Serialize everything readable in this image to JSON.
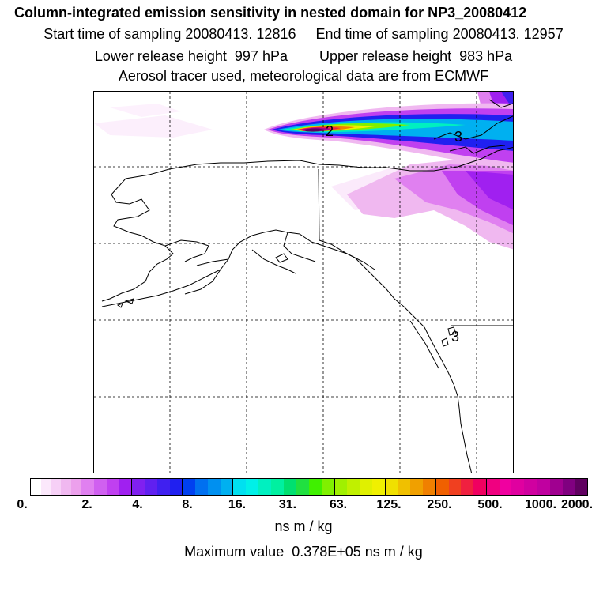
{
  "header": {
    "title": "Column-integrated emission sensitivity in nested domain for NP3_20080412",
    "sampling": "Start time of sampling 20080413. 12816     End time of sampling 20080413. 12957",
    "release": "Lower release height  997 hPa        Upper release height  983 hPa",
    "source": "Aerosol tracer used, meteorological data are from ECMWF"
  },
  "map": {
    "contour_labels": [
      "2",
      "3",
      "3"
    ],
    "colors": {
      "coastline": "#000000",
      "grid": "#000000"
    }
  },
  "colorbar": {
    "ticks": [
      "0.",
      "2.",
      "4.",
      "8.",
      "16.",
      "31.",
      "63.",
      "125.",
      "250.",
      "500.",
      "1000.",
      "2000."
    ],
    "bins": [
      [
        "#ffffff",
        "#fbe8fb",
        "#f6d0f6",
        "#f0b8f0",
        "#eca0ec"
      ],
      [
        "#e080f0",
        "#d060f0",
        "#c040f0",
        "#a020f0"
      ],
      [
        "#8020f0",
        "#6020f0",
        "#4020f0",
        "#2020f0"
      ],
      [
        "#0040f0",
        "#0070f0",
        "#0090f0",
        "#00b0f0"
      ],
      [
        "#00e0f0",
        "#00f0e8",
        "#00f0c0",
        "#00f0a0"
      ],
      [
        "#00e070",
        "#20e040",
        "#40f000",
        "#80f000"
      ],
      [
        "#a0f000",
        "#c0f000",
        "#e0f000",
        "#f0f000"
      ],
      [
        "#f0e000",
        "#f0c000",
        "#f0a000",
        "#f08000"
      ],
      [
        "#f06000",
        "#f04020",
        "#f02040",
        "#f00060"
      ],
      [
        "#f00080",
        "#f000a0",
        "#e000a0",
        "#d000a0"
      ],
      [
        "#c000a0",
        "#a00090",
        "#800080",
        "#600060"
      ]
    ],
    "units": "ns m / kg",
    "max_value": "Maximum value  0.378E+05 ns m / kg"
  }
}
